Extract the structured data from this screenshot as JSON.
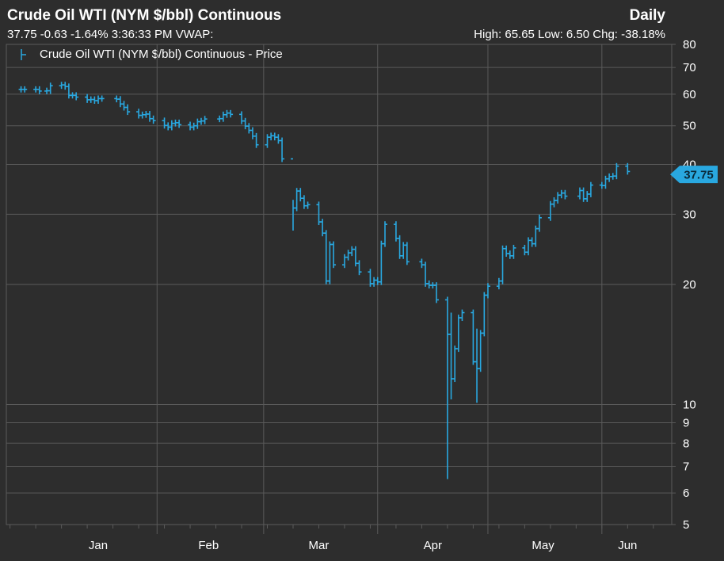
{
  "header": {
    "title": "Crude Oil WTI (NYM $/bbl) Continuous",
    "frequency": "Daily",
    "quote": "37.75 -0.63 -1.64% 3:36:33 PM VWAP:",
    "stats": "High: 65.65 Low: 6.50 Chg: -38.18%"
  },
  "colors": {
    "background": "#2d2d2d",
    "grid": "#5a5a5a",
    "series": "#29a8e0",
    "text": "#ffffff"
  },
  "chart_data": {
    "type": "line",
    "title": "Crude Oil WTI (NYM $/bbl) Continuous",
    "scale": "log",
    "ylim": [
      5,
      80
    ],
    "y_ticks": [
      5,
      6,
      7,
      8,
      9,
      10,
      20,
      30,
      40,
      50,
      60,
      70,
      80
    ],
    "x_ticks": [
      "Jan",
      "Feb",
      "Mar",
      "Apr",
      "May",
      "Jun"
    ],
    "grid": true,
    "legend": "top-left",
    "last_value": "37.75",
    "series": [
      {
        "name": "Crude Oil WTI (NYM $/bbl) Continuous - Price",
        "style": "ohlc",
        "x": [
          "2019-12-26",
          "2019-12-27",
          "2019-12-30",
          "2019-12-31",
          "2020-01-02",
          "2020-01-03",
          "2020-01-06",
          "2020-01-07",
          "2020-01-08",
          "2020-01-09",
          "2020-01-10",
          "2020-01-13",
          "2020-01-14",
          "2020-01-15",
          "2020-01-16",
          "2020-01-17",
          "2020-01-21",
          "2020-01-22",
          "2020-01-23",
          "2020-01-24",
          "2020-01-27",
          "2020-01-28",
          "2020-01-29",
          "2020-01-30",
          "2020-01-31",
          "2020-02-03",
          "2020-02-04",
          "2020-02-05",
          "2020-02-06",
          "2020-02-07",
          "2020-02-10",
          "2020-02-11",
          "2020-02-12",
          "2020-02-13",
          "2020-02-14",
          "2020-02-18",
          "2020-02-19",
          "2020-02-20",
          "2020-02-21",
          "2020-02-24",
          "2020-02-25",
          "2020-02-26",
          "2020-02-27",
          "2020-02-28",
          "2020-03-02",
          "2020-03-03",
          "2020-03-04",
          "2020-03-05",
          "2020-03-06",
          "2020-03-09",
          "2020-03-10",
          "2020-03-11",
          "2020-03-12",
          "2020-03-13",
          "2020-03-16",
          "2020-03-17",
          "2020-03-18",
          "2020-03-19",
          "2020-03-20",
          "2020-03-23",
          "2020-03-24",
          "2020-03-25",
          "2020-03-26",
          "2020-03-27",
          "2020-03-30",
          "2020-03-31",
          "2020-04-01",
          "2020-04-02",
          "2020-04-03",
          "2020-04-06",
          "2020-04-07",
          "2020-04-08",
          "2020-04-09",
          "2020-04-13",
          "2020-04-14",
          "2020-04-15",
          "2020-04-16",
          "2020-04-17",
          "2020-04-20",
          "2020-04-21",
          "2020-04-22",
          "2020-04-23",
          "2020-04-24",
          "2020-04-27",
          "2020-04-28",
          "2020-04-29",
          "2020-04-30",
          "2020-05-01",
          "2020-05-04",
          "2020-05-05",
          "2020-05-06",
          "2020-05-07",
          "2020-05-08",
          "2020-05-11",
          "2020-05-12",
          "2020-05-13",
          "2020-05-14",
          "2020-05-15",
          "2020-05-18",
          "2020-05-19",
          "2020-05-20",
          "2020-05-21",
          "2020-05-22",
          "2020-05-26",
          "2020-05-27",
          "2020-05-28",
          "2020-05-29",
          "2020-06-01",
          "2020-06-02",
          "2020-06-03",
          "2020-06-04",
          "2020-06-05",
          "2020-06-08"
        ],
        "close": [
          61.7,
          61.7,
          61.7,
          61.1,
          61.2,
          63.0,
          63.3,
          62.7,
          59.6,
          59.6,
          59.0,
          58.1,
          58.2,
          57.8,
          58.5,
          58.5,
          58.3,
          56.7,
          55.6,
          54.2,
          53.1,
          53.3,
          53.5,
          52.1,
          51.5,
          50.1,
          49.6,
          50.7,
          50.9,
          50.3,
          49.6,
          50.0,
          51.2,
          51.4,
          52.0,
          52.1,
          53.3,
          53.8,
          53.4,
          51.4,
          49.9,
          48.7,
          47.1,
          44.8,
          46.8,
          47.2,
          46.8,
          45.9,
          41.3,
          31.1,
          34.3,
          32.9,
          31.5,
          31.7,
          28.7,
          26.9,
          20.4,
          25.2,
          22.4,
          23.4,
          24.0,
          24.5,
          22.6,
          21.5,
          20.1,
          20.5,
          20.3,
          25.3,
          28.3,
          26.1,
          23.6,
          25.1,
          22.8,
          22.4,
          20.1,
          19.9,
          19.9,
          18.3,
          15.0,
          11.6,
          13.8,
          16.5,
          17.0,
          12.8,
          12.3,
          15.1,
          18.8,
          19.8,
          20.4,
          24.6,
          23.9,
          23.6,
          24.7,
          24.1,
          25.8,
          25.3,
          27.6,
          29.4,
          31.8,
          32.5,
          33.5,
          33.9,
          33.3,
          34.4,
          32.8,
          33.7,
          35.5,
          35.4,
          36.8,
          37.3,
          37.4,
          39.6,
          38.4
        ]
      }
    ]
  }
}
